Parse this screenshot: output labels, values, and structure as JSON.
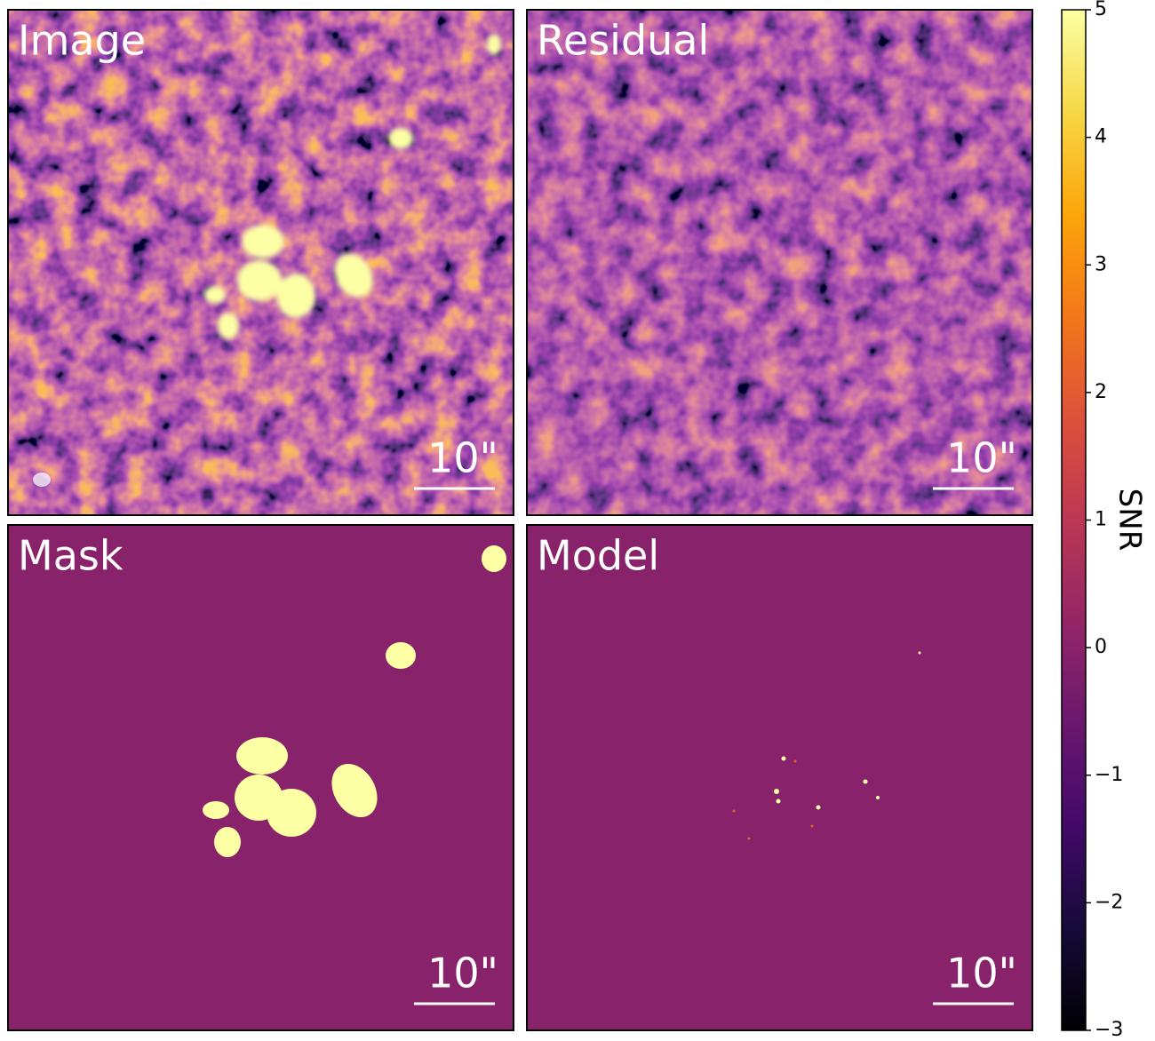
{
  "chart_data": {
    "type": "image",
    "panels": [
      {
        "title": "Image",
        "scale_label": "10\""
      },
      {
        "title": "Residual",
        "scale_label": "10\""
      },
      {
        "title": "Mask",
        "scale_label": "10\""
      },
      {
        "title": "Model",
        "scale_label": "10\""
      }
    ],
    "colorbar": {
      "label": "SNR",
      "lim": [
        -3,
        5
      ],
      "ticks": [
        {
          "value": -3,
          "label": "−3"
        },
        {
          "value": -2,
          "label": "−2"
        },
        {
          "value": -1,
          "label": "−1"
        },
        0,
        1,
        2,
        3,
        4,
        5
      ]
    }
  }
}
